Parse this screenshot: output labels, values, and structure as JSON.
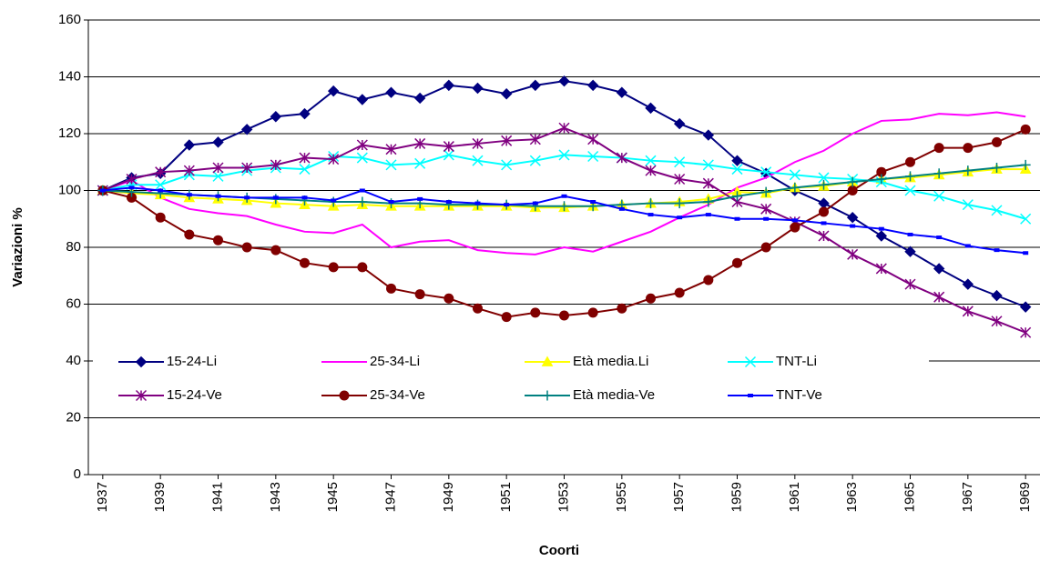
{
  "chart_data": {
    "type": "line",
    "y_label": "Variazioni %",
    "x_label": "Coorti",
    "x": [
      1937,
      1938,
      1939,
      1940,
      1941,
      1942,
      1943,
      1944,
      1945,
      1946,
      1947,
      1948,
      1949,
      1950,
      1951,
      1952,
      1953,
      1954,
      1955,
      1956,
      1957,
      1958,
      1959,
      1960,
      1961,
      1962,
      1963,
      1964,
      1965,
      1966,
      1967,
      1968,
      1969
    ],
    "xlim": [
      1936.5,
      1969.5
    ],
    "xticks": [
      1937,
      1939,
      1941,
      1943,
      1945,
      1947,
      1949,
      1951,
      1953,
      1955,
      1957,
      1959,
      1961,
      1963,
      1965,
      1967,
      1969
    ],
    "ylim": [
      0,
      160
    ],
    "yticks": [
      0,
      20,
      40,
      60,
      80,
      100,
      120,
      140,
      160
    ],
    "grid": true,
    "series": [
      {
        "name": "15-24-Li",
        "color": "#000080",
        "marker": "diamond",
        "values": [
          100,
          104.5,
          106,
          116,
          117,
          121.5,
          126,
          127,
          135,
          132,
          134.5,
          132.5,
          137,
          136,
          134,
          137,
          138.5,
          137,
          134.5,
          129,
          123.5,
          119.5,
          110.5,
          106,
          100,
          95.5,
          90.5,
          84,
          78.5,
          72.5,
          67,
          63,
          59
        ]
      },
      {
        "name": "25-34-Li",
        "color": "#ff00ff",
        "marker": "none",
        "values": [
          100,
          103.5,
          97.5,
          93.5,
          92,
          91,
          88,
          85.5,
          85,
          88,
          80,
          82,
          82.5,
          79,
          78,
          77.5,
          80,
          78.5,
          82,
          85.5,
          90.5,
          95,
          101,
          104.5,
          110,
          114,
          120,
          124.5,
          125,
          127,
          126.5,
          127.5,
          126
        ]
      },
      {
        "name": "Età media.Li",
        "color": "#ffff00",
        "marker": "triangle",
        "values": [
          100,
          99,
          98.5,
          97.5,
          97,
          96.5,
          95.5,
          95,
          94.5,
          95,
          94.5,
          94.5,
          94.5,
          94.5,
          94.5,
          94,
          94,
          94.5,
          95,
          95.5,
          96,
          97,
          99.5,
          99,
          101,
          101.5,
          103,
          104,
          104.5,
          105.5,
          106.5,
          107.5,
          107.5
        ]
      },
      {
        "name": "TNT-Li",
        "color": "#00ffff",
        "marker": "x",
        "values": [
          100,
          102,
          102,
          105.5,
          105,
          107,
          108,
          107.5,
          112,
          111.5,
          109,
          109.5,
          112.5,
          110.5,
          109,
          110.5,
          112.5,
          112,
          111.5,
          110.5,
          110,
          109,
          107.5,
          106.5,
          105.5,
          104.5,
          104,
          103,
          100,
          98,
          95,
          93,
          90
        ]
      },
      {
        "name": "15-24-Ve",
        "color": "#800080",
        "marker": "star",
        "values": [
          100,
          104,
          106.5,
          107,
          108,
          108,
          109,
          111.5,
          111,
          116,
          114.5,
          116.5,
          115.5,
          116.5,
          117.5,
          118,
          122,
          118,
          111.5,
          107,
          104,
          102.5,
          96,
          93.5,
          89,
          84,
          77.5,
          72.5,
          67,
          62.5,
          57.5,
          54,
          50
        ]
      },
      {
        "name": "25-34-Ve",
        "color": "#800000",
        "marker": "circle",
        "values": [
          100,
          97.5,
          90.5,
          84.5,
          82.5,
          80,
          79,
          74.5,
          73,
          73,
          65.5,
          63.5,
          62,
          58.5,
          55.5,
          57,
          56,
          57,
          58.5,
          62,
          64,
          68.5,
          74.5,
          80,
          87,
          92.5,
          100,
          106.5,
          110,
          115,
          115,
          117,
          121.5
        ]
      },
      {
        "name": "Età media-Ve",
        "color": "#008080",
        "marker": "plus",
        "values": [
          100,
          99.5,
          99,
          98.5,
          98,
          97.5,
          97,
          96.5,
          96,
          96,
          95.5,
          95.5,
          95,
          95,
          95,
          94.5,
          94.5,
          94.5,
          95,
          95.5,
          95.5,
          96,
          98,
          99.5,
          101,
          102,
          103,
          104,
          105,
          106,
          107,
          108,
          109
        ]
      },
      {
        "name": "TNT-Ve",
        "color": "#0000ff",
        "marker": "square",
        "values": [
          100,
          101,
          100,
          98.5,
          98,
          97.5,
          97.5,
          97.5,
          96.5,
          100,
          96,
          97,
          96,
          95.5,
          95,
          95.5,
          98,
          96,
          93.5,
          91.5,
          90.5,
          91.5,
          90,
          90,
          89.5,
          88.5,
          87.5,
          86.5,
          84.5,
          83.5,
          80.5,
          79,
          78
        ]
      }
    ]
  }
}
